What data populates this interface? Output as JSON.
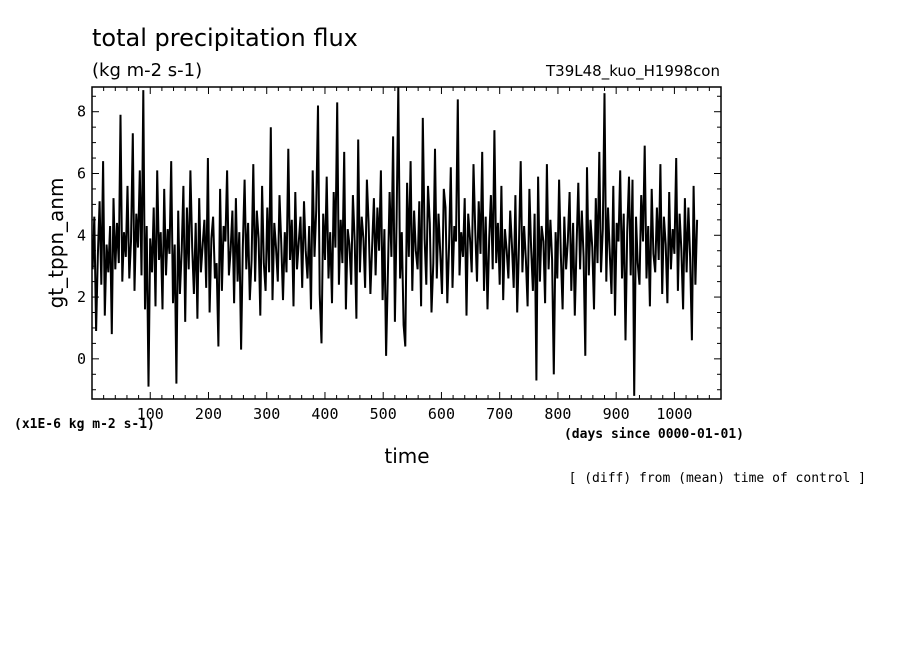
{
  "chart_data": {
    "type": "line",
    "title": "total precipitation flux",
    "subtitle": "(kg m-2 s-1)",
    "run_label": "T39L48_kuo_H1998con",
    "ylabel": "gt_tppn_anm",
    "yscale_note": "(x1E-6 kg m-2 s-1)",
    "xlabel": "time",
    "xunits": "(days since 0000-01-01)",
    "footnote": "[ (diff) from (mean) time of control ]",
    "xlim": [
      0,
      1080
    ],
    "ylim": [
      -1.3,
      8.8
    ],
    "x_ticks": [
      100,
      200,
      300,
      400,
      500,
      600,
      700,
      800,
      900,
      1000
    ],
    "y_ticks": [
      0,
      2,
      4,
      6,
      8
    ],
    "grid": false,
    "legend": "none",
    "line_color": "#000000",
    "series": [
      {
        "x_start": 1,
        "x_step": 3,
        "values": [
          2.9,
          4.6,
          0.9,
          3.3,
          5.1,
          2.4,
          6.4,
          1.4,
          3.7,
          2.8,
          4.3,
          0.8,
          5.2,
          2.9,
          4.4,
          3.1,
          7.9,
          2.5,
          4.1,
          3.3,
          5.6,
          2.6,
          3.8,
          7.3,
          2.2,
          4.7,
          3.6,
          6.1,
          2.7,
          8.7,
          1.6,
          4.3,
          -0.9,
          3.9,
          2.8,
          4.9,
          1.7,
          6.1,
          3.2,
          4.1,
          1.6,
          5.5,
          2.7,
          4.2,
          3.4,
          6.4,
          1.8,
          3.7,
          -0.8,
          4.8,
          2.1,
          3.5,
          5.6,
          1.2,
          4.9,
          2.9,
          6.1,
          3.6,
          2.1,
          4.4,
          1.3,
          5.2,
          2.8,
          3.7,
          4.5,
          2.3,
          6.5,
          1.5,
          3.9,
          4.6,
          2.6,
          3.1,
          0.4,
          5.5,
          2.2,
          4.3,
          3.8,
          6.1,
          2.7,
          3.5,
          4.8,
          1.8,
          5.2,
          2.5,
          4.1,
          0.3,
          3.6,
          5.8,
          2.9,
          4.4,
          1.9,
          3.2,
          6.3,
          2.5,
          4.8,
          3.9,
          1.4,
          5.6,
          3.1,
          2.2,
          4.9,
          2.8,
          7.5,
          1.9,
          4.4,
          3.6,
          2.5,
          5.3,
          3.7,
          1.9,
          4.1,
          2.8,
          6.8,
          3.2,
          4.5,
          1.7,
          5.4,
          2.9,
          3.8,
          4.6,
          2.3,
          5.1,
          3.5,
          2.6,
          4.3,
          1.6,
          6.1,
          3.3,
          4.8,
          8.2,
          2.1,
          0.5,
          4.7,
          3.2,
          5.9,
          2.6,
          4.1,
          1.8,
          5.4,
          3.6,
          8.3,
          2.4,
          4.5,
          3.1,
          6.7,
          1.6,
          4.2,
          3.7,
          2.4,
          5.3,
          3.8,
          1.3,
          7.1,
          2.8,
          4.6,
          3.9,
          2.3,
          5.8,
          4.4,
          2.1,
          3.6,
          5.2,
          2.7,
          4.9,
          3.5,
          6.1,
          1.9,
          4.2,
          0.1,
          2.8,
          5.4,
          3.3,
          7.2,
          1.2,
          4.5,
          8.8,
          2.6,
          4.1,
          1.1,
          0.4,
          5.7,
          3.3,
          6.4,
          2.2,
          4.8,
          3.5,
          2.9,
          5.1,
          1.7,
          7.8,
          3.9,
          2.4,
          5.6,
          4.4,
          1.5,
          3.1,
          6.8,
          2.6,
          4.7,
          3.4,
          2.1,
          5.5,
          4.9,
          1.8,
          3.6,
          6.2,
          2.3,
          4.3,
          3.8,
          8.4,
          2.7,
          4.1,
          3.3,
          5.2,
          1.4,
          4.7,
          3.9,
          2.8,
          6.3,
          4.2,
          2.5,
          5.1,
          3.4,
          6.7,
          2.2,
          4.6,
          1.6,
          3.9,
          5.3,
          2.9,
          7.4,
          3.1,
          4.4,
          2.4,
          5.6,
          1.9,
          4.2,
          3.5,
          2.6,
          4.8,
          3.7,
          2.3,
          5.3,
          1.5,
          3.6,
          6.4,
          2.8,
          4.3,
          3.2,
          1.7,
          5.5,
          3.6,
          2.2,
          4.7,
          -0.7,
          5.9,
          2.5,
          4.3,
          3.8,
          1.8,
          6.3,
          2.9,
          4.5,
          3.2,
          -0.5,
          4.1,
          2.6,
          5.8,
          3.4,
          1.6,
          4.6,
          2.9,
          3.8,
          5.4,
          2.2,
          4.4,
          1.4,
          3.7,
          5.7,
          2.9,
          4.8,
          3.3,
          0.1,
          6.2,
          2.7,
          4.5,
          3.6,
          1.6,
          5.2,
          3.1,
          6.7,
          2.8,
          4.2,
          8.6,
          2.5,
          4.9,
          3.4,
          2.1,
          5.6,
          1.4,
          4.4,
          3.8,
          6.1,
          2.6,
          4.7,
          0.6,
          4.1,
          5.9,
          2.7,
          5.8,
          -1.2,
          4.6,
          3.1,
          2.4,
          5.3,
          3.8,
          6.9,
          2.6,
          4.3,
          1.7,
          5.5,
          3.4,
          2.8,
          4.9,
          3.2,
          6.3,
          2.1,
          4.6,
          3.7,
          1.8,
          5.4,
          2.9,
          4.2,
          3.4,
          6.5,
          2.2,
          4.7,
          3.5,
          1.6,
          5.2,
          2.8,
          4.9,
          3.3,
          0.6,
          5.6,
          2.4,
          4.5
        ]
      }
    ]
  }
}
